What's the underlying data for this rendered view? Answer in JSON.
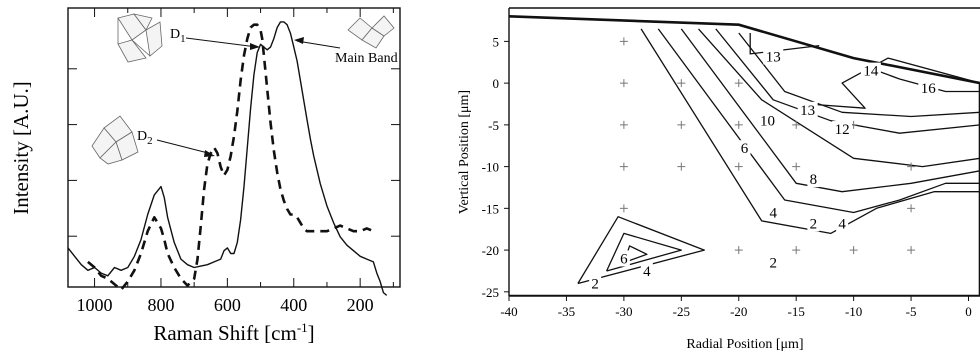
{
  "chart_data": [
    {
      "type": "line",
      "xlabel": "Raman Shift [cm",
      "xlabel_sup": "-1",
      "xlabel_end": "]",
      "ylabel": "Intensity [A.U.]",
      "xlim": [
        1080,
        80
      ],
      "x_reversed": true,
      "xticks": [
        1000,
        800,
        600,
        400,
        200
      ],
      "ylim": [
        0,
        10
      ],
      "annotations": {
        "d1": "D",
        "d1_sub": "1",
        "d2": "D",
        "d2_sub": "2",
        "main": "Main Band"
      },
      "series": [
        {
          "style": "solid",
          "x": [
            1080,
            1060,
            1040,
            1020,
            1000,
            980,
            960,
            940,
            920,
            900,
            880,
            860,
            840,
            820,
            800,
            790,
            780,
            760,
            740,
            720,
            700,
            680,
            660,
            640,
            620,
            610,
            600,
            590,
            580,
            570,
            560,
            550,
            540,
            530,
            520,
            510,
            500,
            490,
            480,
            470,
            460,
            450,
            440,
            430,
            420,
            410,
            400,
            390,
            380,
            370,
            360,
            350,
            340,
            320,
            300,
            280,
            260,
            240,
            220,
            200,
            180,
            160,
            150,
            140,
            130,
            120
          ],
          "y": [
            1.4,
            1.1,
            0.8,
            0.6,
            0.7,
            0.5,
            0.4,
            0.7,
            0.6,
            0.7,
            1.1,
            1.7,
            2.6,
            3.3,
            3.6,
            3.2,
            2.5,
            1.6,
            1.0,
            0.8,
            0.7,
            0.75,
            0.8,
            0.9,
            1.0,
            1.3,
            1.4,
            1.2,
            1.2,
            1.6,
            2.4,
            3.6,
            5.0,
            6.4,
            7.6,
            8.4,
            8.7,
            8.6,
            8.5,
            8.6,
            8.9,
            9.3,
            9.5,
            9.5,
            9.4,
            9.1,
            8.6,
            8.1,
            7.4,
            6.7,
            6.0,
            5.3,
            4.7,
            3.7,
            2.9,
            2.3,
            1.8,
            1.5,
            1.3,
            1.1,
            1.0,
            0.9,
            0.5,
            0.2,
            -0.2,
            -0.3
          ]
        },
        {
          "style": "dashed",
          "x": [
            1020,
            1000,
            980,
            960,
            940,
            920,
            900,
            880,
            860,
            840,
            820,
            800,
            790,
            780,
            760,
            740,
            720,
            700,
            690,
            680,
            670,
            660,
            650,
            640,
            630,
            620,
            610,
            600,
            590,
            580,
            570,
            560,
            550,
            540,
            530,
            520,
            510,
            500,
            495,
            490,
            480,
            470,
            460,
            450,
            440,
            430,
            420,
            410,
            400,
            390,
            380,
            370,
            360,
            350,
            340,
            320,
            300,
            280,
            260,
            240,
            220,
            200,
            180,
            160,
            150
          ],
          "y": [
            0.9,
            0.7,
            0.4,
            0.3,
            0.1,
            -0.1,
            0.2,
            0.6,
            1.2,
            2.0,
            2.5,
            2.1,
            1.7,
            1.2,
            0.7,
            0.3,
            0.05,
            0.3,
            1.0,
            2.2,
            3.5,
            4.4,
            4.8,
            5.0,
            4.8,
            4.3,
            4.0,
            4.2,
            4.7,
            5.4,
            6.3,
            7.4,
            8.3,
            8.9,
            9.3,
            9.4,
            9.4,
            9.2,
            8.9,
            8.3,
            7.1,
            5.9,
            4.9,
            4.1,
            3.5,
            3.1,
            2.8,
            2.6,
            2.6,
            2.5,
            2.3,
            2.1,
            2.0,
            2.0,
            2.0,
            2.0,
            2.0,
            2.1,
            2.2,
            2.1,
            2.0,
            2.0,
            2.1,
            2.0,
            2.0
          ]
        }
      ]
    },
    {
      "type": "contour",
      "xlabel": "Radial Position [μm]",
      "ylabel": "Vertical Position [μm]",
      "xlim": [
        -40,
        1
      ],
      "ylim": [
        -25.5,
        9
      ],
      "xticks": [
        -40,
        -35,
        -30,
        -25,
        -20,
        -15,
        -10,
        -5,
        0
      ],
      "yticks": [
        5,
        0,
        -5,
        -10,
        -15,
        -20,
        -25
      ],
      "xtick_labels": [
        "-40",
        "-35",
        "-30",
        "-25",
        "-20",
        "-15",
        "-10",
        "-5",
        "0"
      ],
      "ytick_labels": [
        "5",
        "0",
        "-5",
        "-10",
        "-15",
        "-20",
        "-25"
      ],
      "sample_points": [
        [
          -30,
          5
        ],
        [
          -30,
          0
        ],
        [
          -25,
          0
        ],
        [
          -20,
          0
        ],
        [
          -30,
          -5
        ],
        [
          -25,
          -5
        ],
        [
          -20,
          -5
        ],
        [
          -15,
          -5
        ],
        [
          -10,
          -5
        ],
        [
          -30,
          -10
        ],
        [
          -25,
          -10
        ],
        [
          -20,
          -10
        ],
        [
          -15,
          -10
        ],
        [
          -5,
          -10
        ],
        [
          -30,
          -15
        ],
        [
          -5,
          -15
        ],
        [
          -20,
          -20
        ],
        [
          -15,
          -20
        ],
        [
          -10,
          -20
        ],
        [
          -5,
          -20
        ]
      ],
      "boundary": [
        [
          -40,
          8
        ],
        [
          -20,
          7
        ],
        [
          -10,
          3
        ],
        [
          1,
          0
        ],
        [
          1,
          -25.5
        ],
        [
          -40,
          -25.5
        ]
      ],
      "contours": [
        {
          "label": "2",
          "points": [
            [
              -34,
              -24
            ],
            [
              -23,
              -20
            ],
            [
              -30.5,
              -16
            ],
            [
              -34,
              -24
            ]
          ]
        },
        {
          "label": "4",
          "points": [
            [
              -31.5,
              -22.5
            ],
            [
              -25,
              -20
            ],
            [
              -30,
              -18
            ],
            [
              -31.5,
              -22.5
            ]
          ]
        },
        {
          "label": "6",
          "points": [
            [
              -30,
              -21.5
            ],
            [
              -28,
              -20.5
            ],
            [
              -29.5,
              -19.5
            ],
            [
              -30,
              -21.5
            ]
          ]
        },
        {
          "label": "2",
          "points": [
            [
              -28.5,
              6.5
            ],
            [
              -18,
              -16.5
            ],
            [
              -12,
              -18
            ],
            [
              -8,
              -15
            ],
            [
              -3,
              -13
            ],
            [
              1,
              -13
            ]
          ]
        },
        {
          "label": "4",
          "points": [
            [
              -27,
              6.5
            ],
            [
              -16,
              -14
            ],
            [
              -10,
              -15.5
            ],
            [
              -6,
              -14
            ],
            [
              -2,
              -12
            ],
            [
              1,
              -12
            ]
          ]
        },
        {
          "label": "6",
          "points": [
            [
              -25,
              6.5
            ],
            [
              -15,
              -12
            ],
            [
              -11,
              -13
            ],
            [
              -5,
              -12
            ],
            [
              1,
              -10.5
            ]
          ]
        },
        {
          "label": "8",
          "points": [
            [
              -23.5,
              6.5
            ],
            [
              -18,
              -2
            ],
            [
              -10,
              -9
            ],
            [
              -4,
              -10
            ],
            [
              1,
              -9
            ]
          ]
        },
        {
          "label": "10",
          "points": [
            [
              -22,
              6.5
            ],
            [
              -17,
              -2
            ],
            [
              -12,
              -4.5
            ],
            [
              -6,
              -6
            ],
            [
              1,
              -5
            ]
          ]
        },
        {
          "label": "12",
          "points": [
            [
              -20,
              6
            ],
            [
              -16,
              -1
            ],
            [
              -11,
              -3.5
            ],
            [
              -5,
              -4
            ],
            [
              1,
              -3.5
            ]
          ]
        },
        {
          "label": "13",
          "points": [
            [
              -19,
              6
            ],
            [
              -19,
              3.5
            ],
            [
              -13,
              4.5
            ]
          ]
        },
        {
          "label": "13",
          "points": [
            [
              -14,
              -2.5
            ],
            [
              -9,
              -3
            ],
            [
              -11,
              0
            ],
            [
              -7,
              3
            ],
            [
              1,
              0
            ]
          ]
        },
        {
          "label": "14",
          "points": [
            [
              -9,
              2
            ],
            [
              -6,
              0.5
            ],
            [
              -2,
              -1
            ],
            [
              1,
              -1
            ]
          ]
        }
      ],
      "contour_label_positions": [
        {
          "text": "13",
          "x": -17,
          "y": 3.2
        },
        {
          "text": "14",
          "x": -8.5,
          "y": 1.5
        },
        {
          "text": "16",
          "x": -3.5,
          "y": -0.6
        },
        {
          "text": "13",
          "x": -14,
          "y": -3.2
        },
        {
          "text": "10",
          "x": -17.5,
          "y": -4.5
        },
        {
          "text": "12",
          "x": -11,
          "y": -5.5
        },
        {
          "text": "6",
          "x": -19.5,
          "y": -7.8
        },
        {
          "text": "8",
          "x": -13.5,
          "y": -11.5
        },
        {
          "text": "4",
          "x": -17,
          "y": -15.5
        },
        {
          "text": "2",
          "x": -13.5,
          "y": -16.8
        },
        {
          "text": "4",
          "x": -11,
          "y": -16.8
        },
        {
          "text": "2",
          "x": -17,
          "y": -21.5
        },
        {
          "text": "6",
          "x": -30,
          "y": -21
        },
        {
          "text": "4",
          "x": -28,
          "y": -22.5
        },
        {
          "text": "2",
          "x": -32.5,
          "y": -24
        }
      ]
    }
  ]
}
